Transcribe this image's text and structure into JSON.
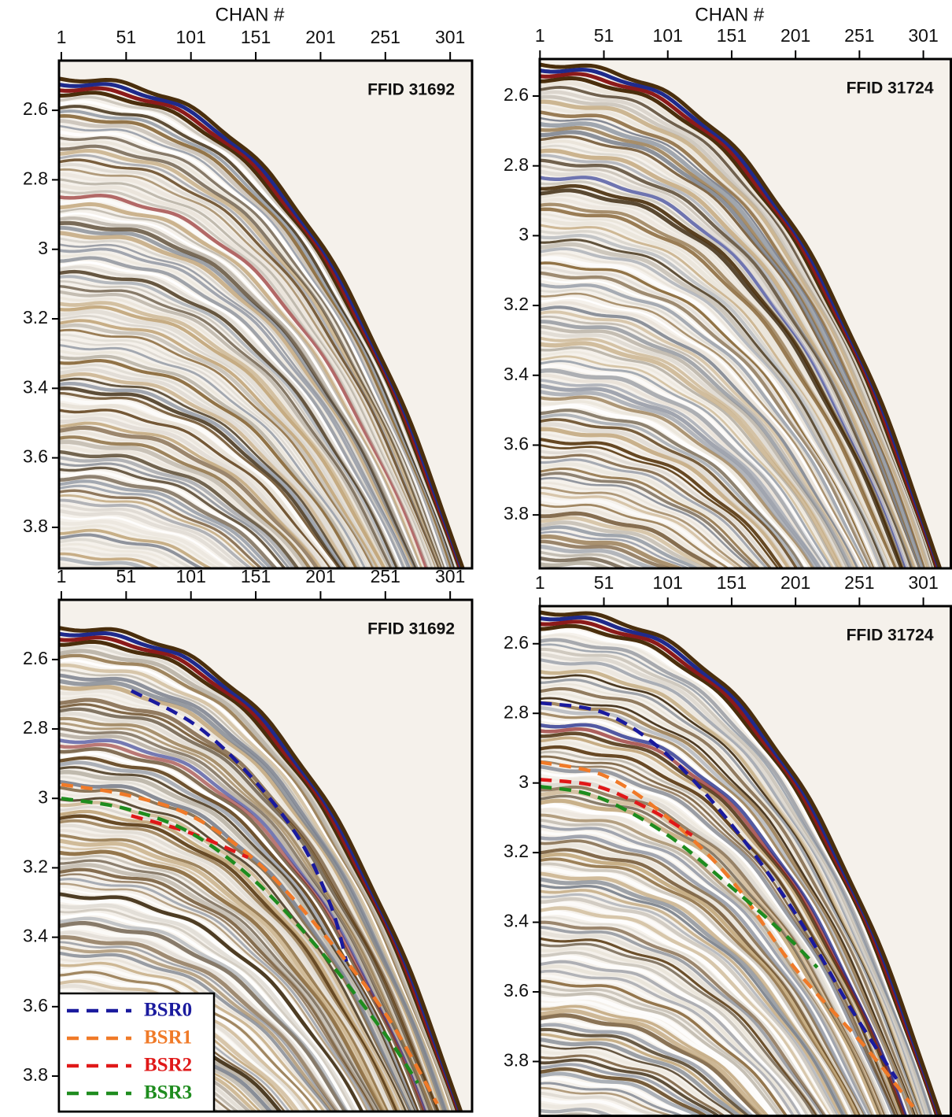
{
  "chart_data": [
    {
      "type": "line",
      "title": "FFID 31692",
      "xlabel": "CHAN #",
      "xlim": [
        -0.8,
        317.9
      ],
      "xticks": [
        1,
        51,
        101,
        151,
        201,
        251,
        301
      ],
      "ylim": [
        3.918,
        2.457
      ],
      "yticks": [
        2.6,
        2.8,
        3.0,
        3.2,
        3.4,
        3.6,
        3.8
      ]
    },
    {
      "type": "line",
      "title": "FFID 31724",
      "xlabel": "CHAN #",
      "xlim": [
        0.8,
        322.5
      ],
      "xticks": [
        1,
        51,
        101,
        151,
        201,
        251,
        301
      ],
      "ylim": [
        3.953,
        2.494
      ],
      "yticks": [
        2.6,
        2.8,
        3.0,
        3.2,
        3.4,
        3.6,
        3.8
      ]
    },
    {
      "type": "line",
      "title": "FFID 31692",
      "xlim": [
        -0.8,
        317.9
      ],
      "xticks": [
        1,
        51,
        101,
        151,
        201,
        251,
        301
      ],
      "ylim": [
        3.902,
        2.428
      ],
      "yticks": [
        2.6,
        2.8,
        3.0,
        3.2,
        3.4,
        3.6,
        3.8
      ],
      "legend": "lower left",
      "series": [
        {
          "name": "BSR0",
          "color": "#1a1a9e",
          "x": [
            55,
            105,
            148,
            185,
            209,
            221
          ],
          "values": [
            2.69,
            2.79,
            2.94,
            3.12,
            3.31,
            3.47
          ]
        },
        {
          "name": "BSR1",
          "color": "#f07a28",
          "x": [
            1,
            51,
            101,
            151,
            201,
            251,
            291
          ],
          "values": [
            2.96,
            2.99,
            3.05,
            3.18,
            3.38,
            3.62,
            3.88
          ]
        },
        {
          "name": "BSR2",
          "color": "#e01818",
          "x": [
            55,
            101,
            145
          ],
          "values": [
            3.05,
            3.1,
            3.17
          ]
        },
        {
          "name": "BSR3",
          "color": "#1e8c1e",
          "x": [
            1,
            51,
            101,
            151,
            201,
            251,
            276
          ],
          "values": [
            3.0,
            3.03,
            3.1,
            3.24,
            3.44,
            3.68,
            3.82
          ]
        }
      ]
    },
    {
      "type": "line",
      "title": "FFID 31724",
      "xlim": [
        0.8,
        322.5
      ],
      "xticks": [
        1,
        51,
        101,
        151,
        201,
        251,
        301
      ],
      "ylim": [
        3.956,
        2.492
      ],
      "yticks": [
        2.6,
        2.8,
        3.0,
        3.2,
        3.4,
        3.6,
        3.8
      ],
      "series": [
        {
          "color": "#1a1a9e",
          "x": [
            1,
            52,
            101,
            151,
            200,
            243,
            280
          ],
          "values": [
            2.77,
            2.8,
            2.92,
            3.12,
            3.37,
            3.64,
            3.85
          ]
        },
        {
          "color": "#f07a28",
          "x": [
            1,
            52,
            101,
            151,
            200,
            256,
            293
          ],
          "values": [
            2.94,
            2.98,
            3.1,
            3.28,
            3.53,
            3.76,
            3.93
          ]
        },
        {
          "color": "#e01818",
          "x": [
            1,
            46,
            89,
            120
          ],
          "values": [
            2.99,
            3.01,
            3.08,
            3.15
          ]
        },
        {
          "color": "#1e8c1e",
          "x": [
            1,
            46,
            101,
            151,
            194,
            218
          ],
          "values": [
            3.01,
            3.04,
            3.15,
            3.3,
            3.44,
            3.53
          ]
        }
      ]
    }
  ]
}
